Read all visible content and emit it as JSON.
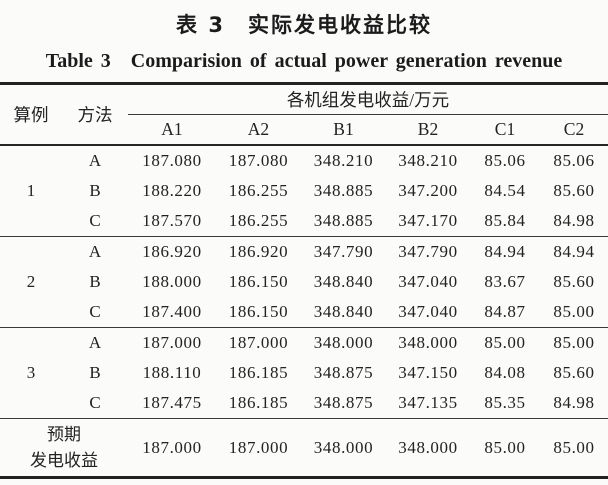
{
  "title": {
    "zh": "表 3　实际发电收益比较",
    "en": "Table 3　Comparision of actual power generation revenue"
  },
  "table": {
    "col_case": "算例",
    "col_method": "方法",
    "group_header": "各机组发电收益/万元",
    "unit_cols": [
      "A1",
      "A2",
      "B1",
      "B2",
      "C1",
      "C2"
    ],
    "groups": [
      {
        "case": "1",
        "rows": [
          {
            "method": "A",
            "values": [
              "187.080",
              "187.080",
              "348.210",
              "348.210",
              "85.06",
              "85.06"
            ]
          },
          {
            "method": "B",
            "values": [
              "188.220",
              "186.255",
              "348.885",
              "347.200",
              "84.54",
              "85.60"
            ]
          },
          {
            "method": "C",
            "values": [
              "187.570",
              "186.255",
              "348.885",
              "347.170",
              "85.84",
              "84.98"
            ]
          }
        ]
      },
      {
        "case": "2",
        "rows": [
          {
            "method": "A",
            "values": [
              "186.920",
              "186.920",
              "347.790",
              "347.790",
              "84.94",
              "84.94"
            ]
          },
          {
            "method": "B",
            "values": [
              "188.000",
              "186.150",
              "348.840",
              "347.040",
              "83.67",
              "85.60"
            ]
          },
          {
            "method": "C",
            "values": [
              "187.400",
              "186.150",
              "348.840",
              "347.040",
              "84.87",
              "85.00"
            ]
          }
        ]
      },
      {
        "case": "3",
        "rows": [
          {
            "method": "A",
            "values": [
              "187.000",
              "187.000",
              "348.000",
              "348.000",
              "85.00",
              "85.00"
            ]
          },
          {
            "method": "B",
            "values": [
              "188.110",
              "186.185",
              "348.875",
              "347.150",
              "84.08",
              "85.60"
            ]
          },
          {
            "method": "C",
            "values": [
              "187.475",
              "186.185",
              "348.875",
              "347.135",
              "85.35",
              "84.98"
            ]
          }
        ]
      }
    ],
    "footer": {
      "label_line1": "预期",
      "label_line2": "发电收益",
      "values": [
        "187.000",
        "187.000",
        "348.000",
        "348.000",
        "85.00",
        "85.00"
      ]
    }
  }
}
